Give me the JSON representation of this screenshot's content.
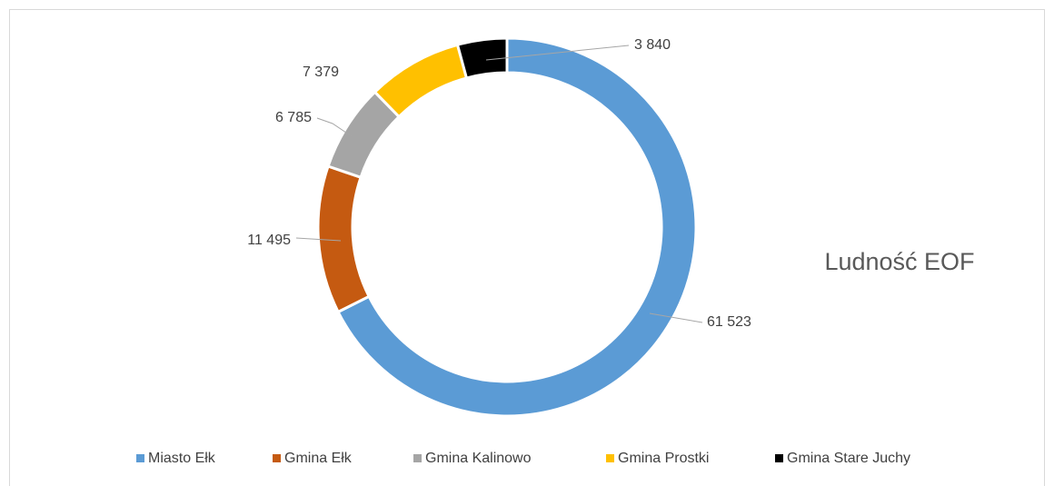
{
  "chart_data": {
    "type": "donut",
    "title": "Ludność EOF",
    "categories": [
      "Miasto Ełk",
      "Gmina Ełk",
      "Gmina Kalinowo",
      "Gmina Prostki",
      "Gmina Stare Juchy"
    ],
    "values": [
      61523,
      11495,
      6785,
      7379,
      3840
    ],
    "value_labels": [
      "61 523",
      "11 495",
      "6 785",
      "7 379",
      "3 840"
    ],
    "colors": [
      "#5b9bd5",
      "#c55a11",
      "#a5a5a5",
      "#ffc000",
      "#000000"
    ],
    "legend": "bottom"
  }
}
